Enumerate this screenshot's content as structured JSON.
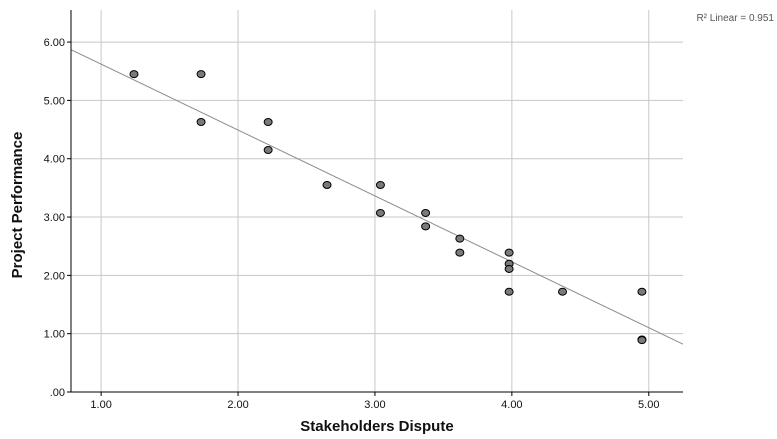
{
  "chart_data": {
    "type": "scatter",
    "title": "",
    "xlabel": "Stakeholders Dispute",
    "ylabel": "Project Performance",
    "xlim": [
      0.78,
      5.25
    ],
    "ylim": [
      0,
      6.55
    ],
    "x_ticks": [
      1,
      2,
      3,
      4,
      5
    ],
    "x_tick_labels": [
      "1.00",
      "2.00",
      "3.00",
      "4.00",
      "5.00"
    ],
    "y_ticks": [
      0,
      1,
      2,
      3,
      4,
      5,
      6
    ],
    "y_tick_labels": [
      ".00",
      "1.00",
      "2.00",
      "3.00",
      "4.00",
      "5.00",
      "6.00"
    ],
    "grid": true,
    "legend": "none",
    "points": [
      {
        "x": 1.24,
        "y": 5.45
      },
      {
        "x": 1.73,
        "y": 5.45
      },
      {
        "x": 1.73,
        "y": 4.63
      },
      {
        "x": 2.22,
        "y": 4.63
      },
      {
        "x": 2.22,
        "y": 4.15
      },
      {
        "x": 2.65,
        "y": 3.55
      },
      {
        "x": 3.04,
        "y": 3.55
      },
      {
        "x": 3.04,
        "y": 3.07
      },
      {
        "x": 3.37,
        "y": 3.07
      },
      {
        "x": 3.37,
        "y": 2.84
      },
      {
        "x": 3.62,
        "y": 2.63
      },
      {
        "x": 3.62,
        "y": 2.39
      },
      {
        "x": 3.98,
        "y": 2.39
      },
      {
        "x": 3.98,
        "y": 2.2
      },
      {
        "x": 3.98,
        "y": 2.11
      },
      {
        "x": 3.98,
        "y": 1.72
      },
      {
        "x": 4.37,
        "y": 1.72
      },
      {
        "x": 4.95,
        "y": 1.72
      },
      {
        "x": 4.95,
        "y": 0.9
      },
      {
        "x": 4.95,
        "y": 0.89
      }
    ],
    "fit_line": {
      "kind": "linear",
      "x": [
        0.78,
        5.25
      ],
      "y": [
        5.87,
        0.82
      ]
    },
    "annotation": "R² Linear = 0.951",
    "colors": {
      "point_fill": "#7a7a7a",
      "point_stroke": "#000000",
      "grid": "#c8c8c8",
      "fit_line": "#8c8c8c",
      "axis": "#000000"
    }
  }
}
